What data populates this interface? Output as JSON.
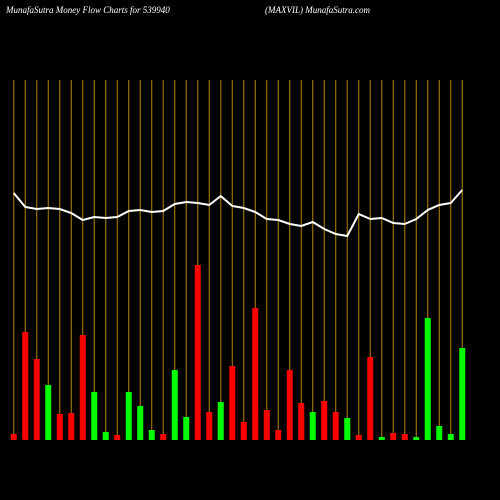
{
  "chart_data": {
    "type": "bar",
    "title": "MunafaSutra  Money Flow  Charts for 539940",
    "subtitle": "(MAXVIL) MunafaSutra.com",
    "ylim": [
      0,
      360
    ],
    "values": [
      6,
      108,
      81,
      55,
      26,
      27,
      105,
      48,
      8,
      5,
      48,
      34,
      10,
      6,
      70,
      23,
      175,
      28,
      38,
      74,
      18,
      132,
      30,
      10,
      70,
      37,
      28,
      39,
      28,
      22,
      5,
      83,
      3,
      7,
      6,
      3,
      122,
      14,
      6,
      92
    ],
    "colors": [
      "#ff0000",
      "#ff0000",
      "#ff0000",
      "#00ff00",
      "#ff0000",
      "#ff0000",
      "#ff0000",
      "#00ff00",
      "#00ff00",
      "#ff0000",
      "#00ff00",
      "#00ff00",
      "#00ff00",
      "#ff0000",
      "#00ff00",
      "#00ff00",
      "#ff0000",
      "#ff0000",
      "#00ff00",
      "#ff0000",
      "#ff0000",
      "#ff0000",
      "#ff0000",
      "#ff0000",
      "#ff0000",
      "#ff0000",
      "#00ff00",
      "#ff0000",
      "#ff0000",
      "#00ff00",
      "#ff0000",
      "#ff0000",
      "#00ff00",
      "#ff0000",
      "#ff0000",
      "#00ff00",
      "#00ff00",
      "#00ff00",
      "#00ff00",
      "#00ff00"
    ],
    "line": {
      "color": "#ffffff",
      "values": [
        247,
        233,
        231,
        232,
        231,
        227,
        220,
        223,
        222,
        223,
        229,
        230,
        228,
        229,
        236,
        238,
        237,
        235,
        244,
        234,
        232,
        228,
        221,
        220,
        216,
        214,
        218,
        211,
        206,
        204,
        226,
        221,
        222,
        217,
        216,
        221,
        230,
        235,
        237,
        250
      ]
    },
    "gridline_color": "#b8860b"
  }
}
